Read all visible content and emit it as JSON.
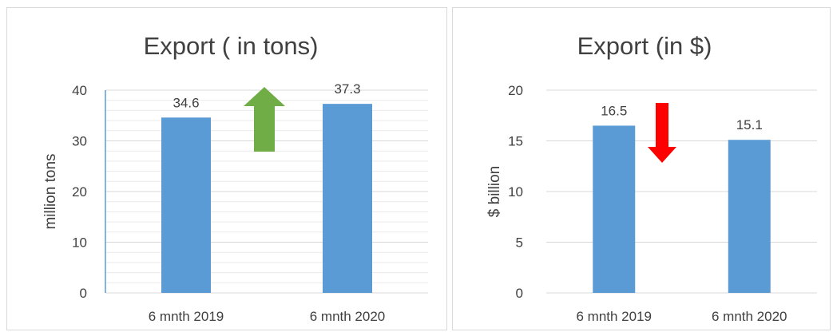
{
  "chart_data": [
    {
      "type": "bar",
      "title": "Export ( in tons)",
      "xlabel": "",
      "ylabel": "million tons",
      "categories": [
        "6 mnth 2019",
        "6 mnth 2020"
      ],
      "values": [
        34.6,
        37.3
      ],
      "data_labels": [
        "34.6",
        "37.3"
      ],
      "ylim": [
        0,
        40
      ],
      "yticks": [
        "0",
        "10",
        "20",
        "30",
        "40"
      ],
      "grid": true,
      "bar_color": "#5b9bd5",
      "trend": "up",
      "trend_icon": "up-arrow-icon",
      "trend_color": "#70ad47"
    },
    {
      "type": "bar",
      "title": "Export (in $)",
      "xlabel": "",
      "ylabel": "$ billion",
      "categories": [
        "6 mnth 2019",
        "6 mnth 2020"
      ],
      "values": [
        16.5,
        15.1
      ],
      "data_labels": [
        "16.5",
        "15.1"
      ],
      "ylim": [
        0,
        20
      ],
      "yticks": [
        "0",
        "5",
        "10",
        "15",
        "20"
      ],
      "grid": true,
      "bar_color": "#5b9bd5",
      "trend": "down",
      "trend_icon": "down-arrow-icon",
      "trend_color": "#ff0000"
    }
  ]
}
